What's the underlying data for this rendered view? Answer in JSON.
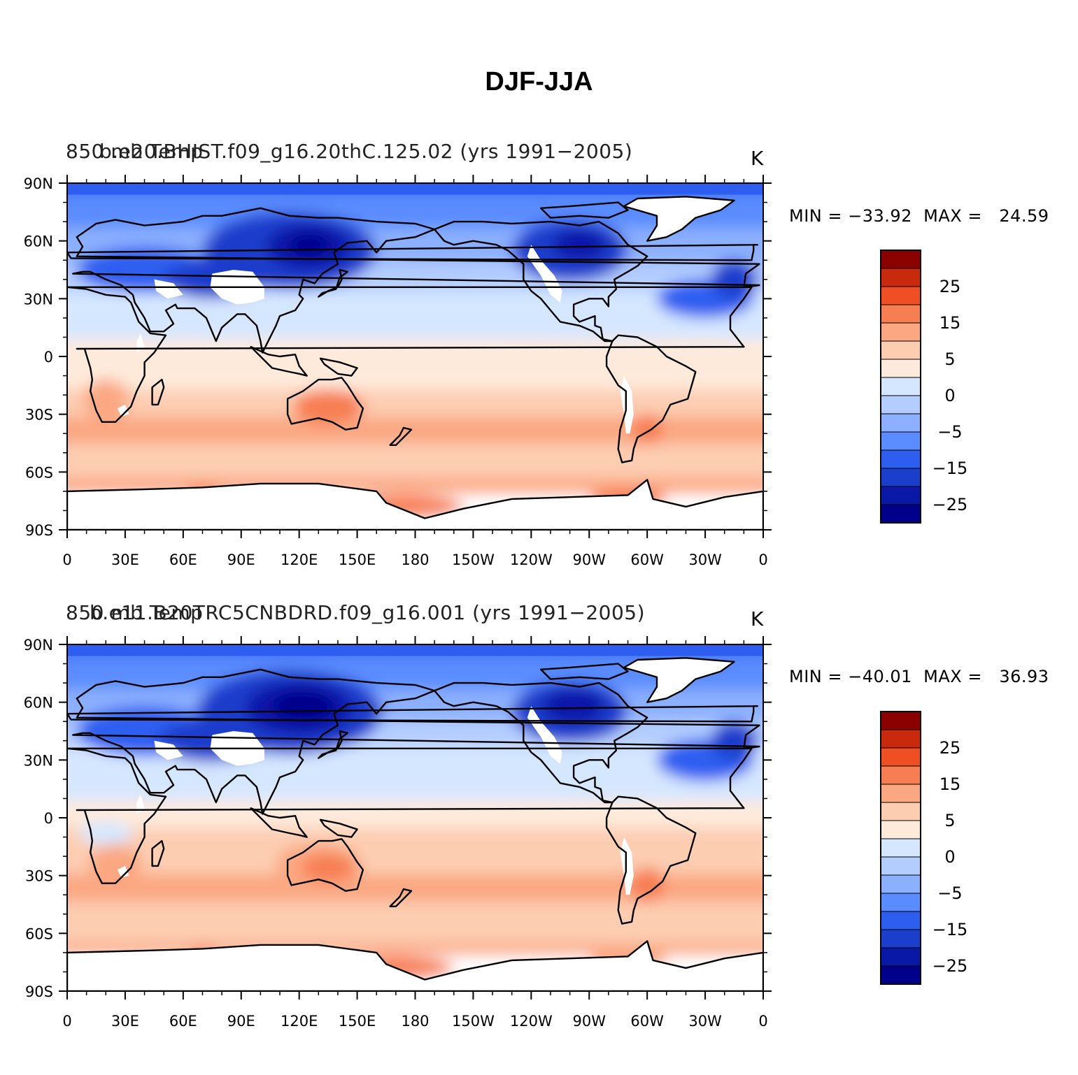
{
  "title": "DJF-JJA",
  "colors": [
    "#00008b",
    "#0a18a8",
    "#1c3ecc",
    "#2e5ef0",
    "#5a8cff",
    "#8cb0ff",
    "#b4cdff",
    "#d5e7ff",
    "#feeadb",
    "#fdcdb2",
    "#fba782",
    "#f77e52",
    "#f04f25",
    "#c9290c",
    "#8b0000"
  ],
  "colorbar_labels": [
    "25",
    "15",
    "5",
    "0",
    "−5",
    "−15",
    "−25"
  ],
  "lat_labels": [
    "90N",
    "60N",
    "30N",
    "0",
    "30S",
    "60S",
    "90S"
  ],
  "lon_labels": [
    "0",
    "30E",
    "60E",
    "90E",
    "120E",
    "150E",
    "180",
    "150W",
    "120W",
    "90W",
    "60W",
    "30W",
    "0"
  ],
  "panels": [
    {
      "variable": "850 mb Temp",
      "case": "b.e20.BHIST.f09_g16.20thC.125.02 (yrs 1991−2005)",
      "units": "K",
      "stats": "MIN = −33.92  MAX =   24.59",
      "min": -33.92,
      "max": 24.59
    },
    {
      "variable": "850 mb Temp",
      "case": "b.e11.B20TRC5CNBDRD.f09_g16.001 (yrs 1991−2005)",
      "units": "K",
      "stats": "MIN = −40.01  MAX =   36.93",
      "min": -40.01,
      "max": 36.93
    }
  ]
}
